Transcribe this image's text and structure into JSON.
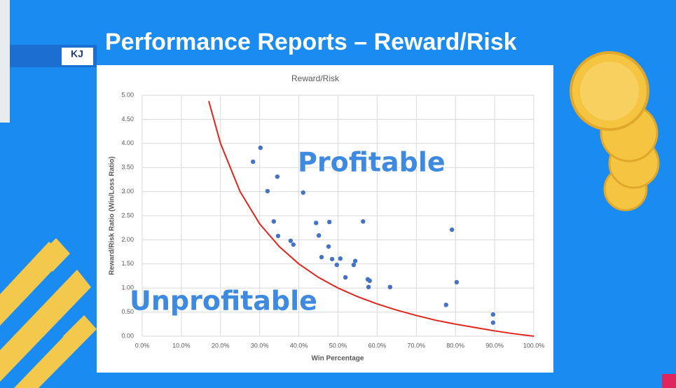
{
  "slide_title": "Performance Reports – Reward/Risk",
  "logo": "KJ",
  "chart_data": {
    "type": "scatter",
    "title": "Reward/Risk",
    "x_label": "Win Percentage",
    "y_label": "Reward/Risk Ratio   (Win/Loss Ratio)",
    "annotations": [
      "Profitable",
      "Unprofitable"
    ],
    "xlim": [
      0,
      100
    ],
    "ylim": [
      0,
      5
    ],
    "grid": true,
    "xticks": [
      {
        "value": 0,
        "label": "0.0%"
      },
      {
        "value": 10,
        "label": "10.0%"
      },
      {
        "value": 20,
        "label": "20.0%"
      },
      {
        "value": 30,
        "label": "30.0%"
      },
      {
        "value": 40,
        "label": "40.0%"
      },
      {
        "value": 50,
        "label": "50.0%"
      },
      {
        "value": 60,
        "label": "60.0%"
      },
      {
        "value": 70,
        "label": "70.0%"
      },
      {
        "value": 80,
        "label": "80.0%"
      },
      {
        "value": 90,
        "label": "90.0%"
      },
      {
        "value": 100,
        "label": "100.0%"
      }
    ],
    "yticks": [
      {
        "value": 0,
        "label": "0.00"
      },
      {
        "value": 0.5,
        "label": "0.50"
      },
      {
        "value": 1,
        "label": "1.00"
      },
      {
        "value": 1.5,
        "label": "1.50"
      },
      {
        "value": 2,
        "label": "2.00"
      },
      {
        "value": 2.5,
        "label": "2.50"
      },
      {
        "value": 3,
        "label": "3.00"
      },
      {
        "value": 3.5,
        "label": "3.50"
      },
      {
        "value": 4,
        "label": "4.00"
      },
      {
        "value": 4.5,
        "label": "4.50"
      },
      {
        "value": 5,
        "label": "5.00"
      }
    ],
    "series": [
      {
        "color": "#4472c4",
        "x": [
          28.3,
          30.2,
          32.0,
          34.5,
          33.6,
          34.7,
          41.1,
          37.9,
          38.6,
          44.4,
          45.1,
          47.8,
          47.6,
          45.8,
          48.5,
          50.6,
          49.7,
          54.4,
          54.0,
          56.4,
          51.9,
          57.6,
          58.1,
          57.8,
          63.3,
          79.1,
          80.3,
          77.6,
          89.6,
          89.6
        ],
        "values": [
          3.62,
          3.91,
          3.01,
          3.31,
          2.38,
          2.08,
          2.98,
          1.98,
          1.9,
          2.35,
          2.09,
          2.37,
          1.86,
          1.64,
          1.6,
          1.61,
          1.48,
          1.56,
          1.48,
          2.38,
          1.22,
          1.18,
          1.15,
          1.02,
          1.02,
          2.21,
          1.12,
          0.65,
          0.45,
          0.28
        ]
      },
      {
        "type": "line",
        "color": "#e3241b",
        "x": [
          17,
          20,
          25,
          30,
          35,
          40,
          45,
          50,
          55,
          60,
          65,
          70,
          75,
          80,
          85,
          90,
          95,
          100
        ],
        "values": [
          4.88,
          4.0,
          3.0,
          2.33,
          1.86,
          1.5,
          1.22,
          1.0,
          0.82,
          0.67,
          0.54,
          0.43,
          0.33,
          0.25,
          0.18,
          0.11,
          0.05,
          0
        ]
      }
    ]
  }
}
